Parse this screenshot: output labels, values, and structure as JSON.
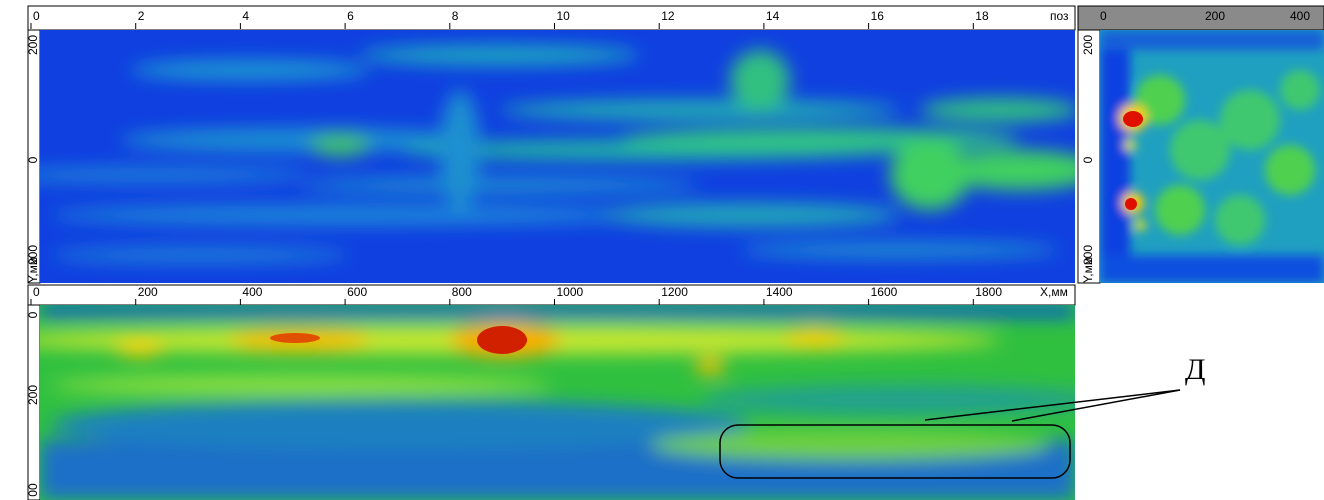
{
  "top_panel": {
    "x_ticks": [
      "0",
      "2",
      "4",
      "6",
      "8",
      "10",
      "12",
      "14",
      "16",
      "18"
    ],
    "x_unit": "поз",
    "y_ticks": [
      "200",
      "0",
      "200"
    ],
    "y_unit": "Y,мм"
  },
  "side_panel": {
    "x_ticks": [
      "0",
      "200",
      "400"
    ],
    "y_ticks": [
      "200",
      "0",
      "200"
    ],
    "y_unit": "Y,мм"
  },
  "bottom_panel": {
    "x_ticks": [
      "0",
      "200",
      "400",
      "600",
      "800",
      "1000",
      "1200",
      "1400",
      "1600",
      "1800"
    ],
    "x_unit": "X,мм",
    "y_ticks": [
      "0",
      "200",
      "00"
    ]
  },
  "annotation": {
    "label": "Д"
  }
}
